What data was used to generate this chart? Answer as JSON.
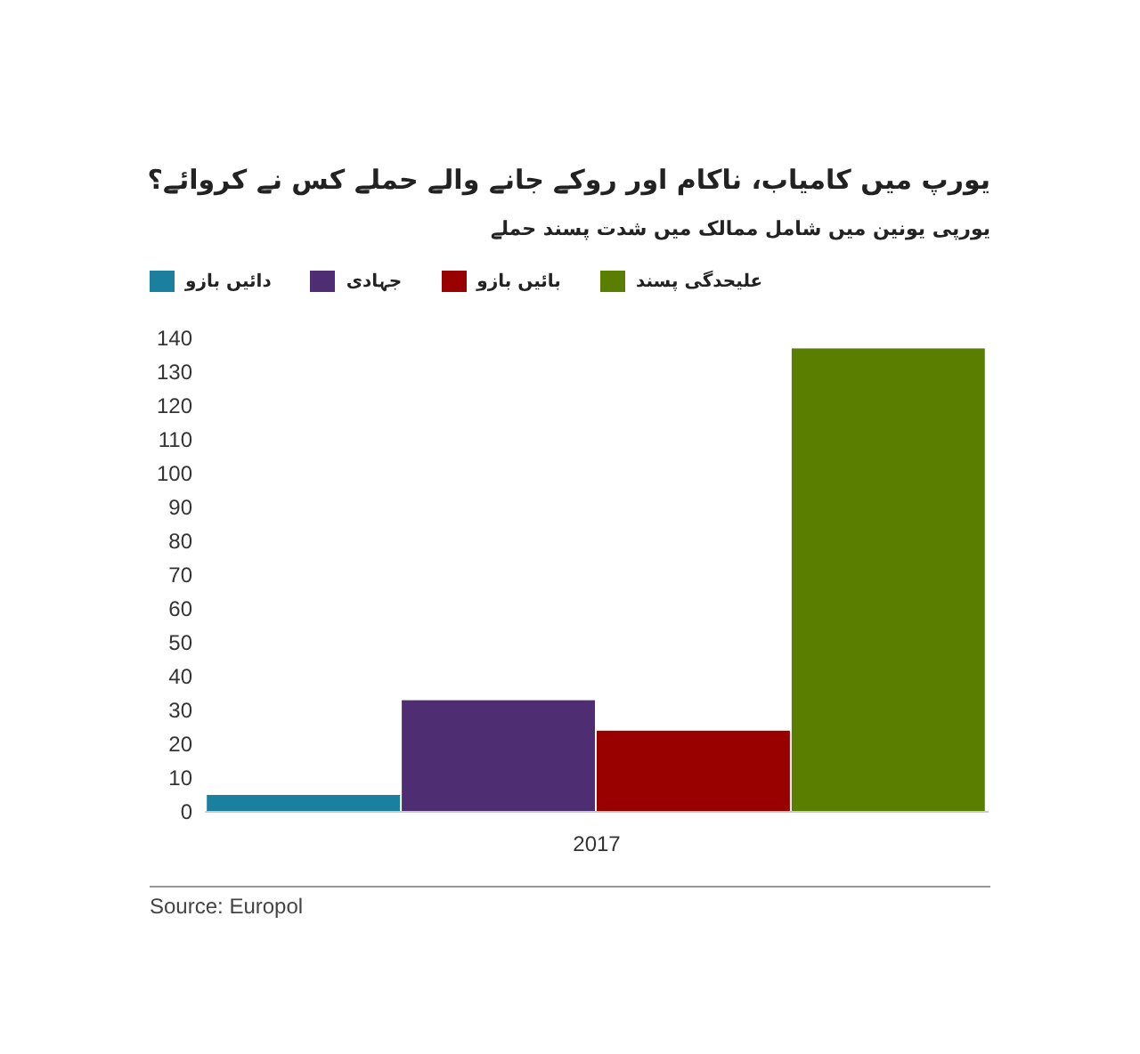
{
  "chart_data": {
    "type": "bar",
    "title": "یورپ میں کامیاب، ناکام اور روکے جانے والے حملے کس نے کروائے؟",
    "subtitle": "یورپی یونین میں شامل ممالک میں شدت پسند حملے",
    "categories": [
      "2017"
    ],
    "series": [
      {
        "name": "دائیں بازو",
        "color": "#1b7fa0",
        "values": [
          5
        ]
      },
      {
        "name": "جہادی",
        "color": "#4e2d73",
        "values": [
          33
        ]
      },
      {
        "name": "بائیں بازو",
        "color": "#990000",
        "values": [
          24
        ]
      },
      {
        "name": "علیحدگی پسند",
        "color": "#5a7f00",
        "values": [
          137
        ]
      }
    ],
    "ylim": [
      0,
      140
    ],
    "yticks": [
      0,
      10,
      20,
      30,
      40,
      50,
      60,
      70,
      80,
      90,
      100,
      110,
      120,
      130,
      140
    ],
    "grid": false,
    "legend": "top left",
    "annotations": [
      "Source: Europol"
    ]
  }
}
